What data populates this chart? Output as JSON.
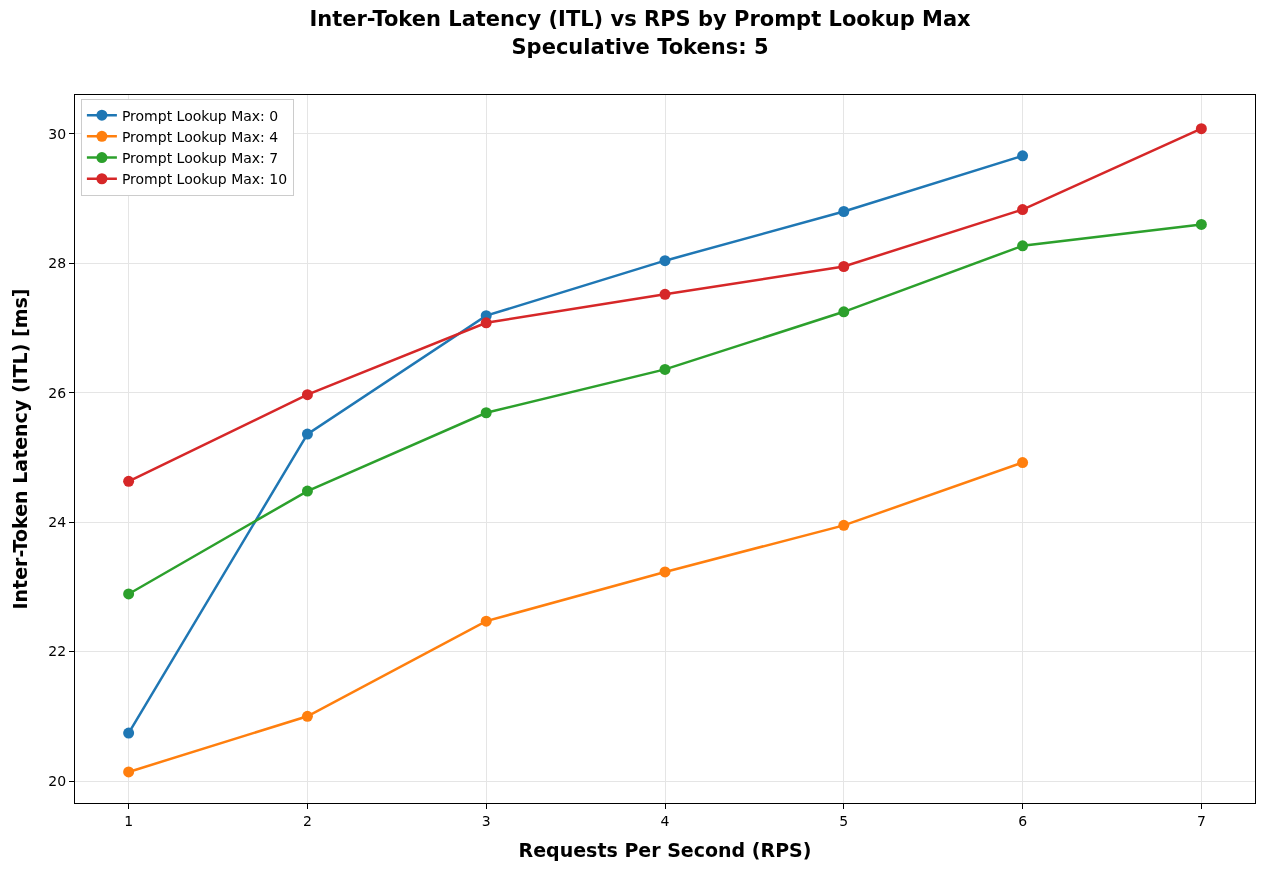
{
  "chart_data": {
    "type": "line",
    "title": "Inter-Token Latency (ITL) vs RPS by Prompt Lookup Max",
    "subtitle": "Speculative Tokens: 5",
    "xlabel": "Requests Per Second (RPS)",
    "ylabel": "Inter-Token Latency (ITL) [ms]",
    "xlim": [
      0.7,
      7.3
    ],
    "xticks": [
      1,
      2,
      3,
      4,
      5,
      6,
      7
    ],
    "ylim": [
      19.66,
      30.6
    ],
    "yticks": [
      20,
      22,
      24,
      26,
      28,
      30
    ],
    "grid": true,
    "legend": "top left",
    "marker": "circle",
    "line_style": "solid",
    "series": [
      {
        "name": "Prompt Lookup Max: 0",
        "color": "#1f77b4",
        "x": [
          1,
          2,
          3,
          4,
          5,
          6
        ],
        "values": [
          20.74,
          25.36,
          27.19,
          28.04,
          28.8,
          29.66
        ]
      },
      {
        "name": "Prompt Lookup Max: 4",
        "color": "#ff7f0e",
        "x": [
          1,
          2,
          3,
          4,
          5,
          6
        ],
        "values": [
          20.14,
          21.0,
          22.47,
          23.23,
          23.95,
          24.92
        ]
      },
      {
        "name": "Prompt Lookup Max: 7",
        "color": "#2ca02c",
        "x": [
          1,
          2,
          3,
          4,
          5,
          6,
          7
        ],
        "values": [
          22.89,
          24.48,
          25.69,
          26.36,
          27.25,
          28.27,
          28.6
        ]
      },
      {
        "name": "Prompt Lookup Max: 10",
        "color": "#d62728",
        "x": [
          1,
          2,
          3,
          4,
          5,
          6,
          7
        ],
        "values": [
          24.63,
          25.97,
          27.08,
          27.52,
          27.95,
          28.83,
          30.08
        ]
      }
    ]
  }
}
